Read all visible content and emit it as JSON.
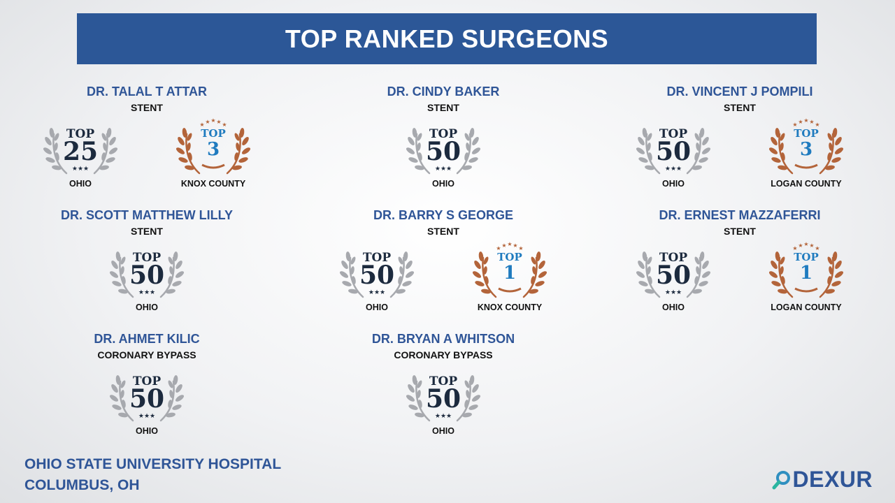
{
  "header": {
    "title": "TOP RANKED SURGEONS"
  },
  "surgeons": [
    {
      "name": "DR. TALAL T ATTAR",
      "procedure": "STENT",
      "badges": [
        {
          "top": "TOP",
          "rank": "25",
          "location": "OHIO",
          "style": "silver"
        },
        {
          "top": "TOP",
          "rank": "3",
          "location": "KNOX COUNTY",
          "style": "bronze"
        }
      ]
    },
    {
      "name": "DR. CINDY BAKER",
      "procedure": "STENT",
      "badges": [
        {
          "top": "TOP",
          "rank": "50",
          "location": "OHIO",
          "style": "silver"
        }
      ]
    },
    {
      "name": "DR. VINCENT J POMPILI",
      "procedure": "STENT",
      "badges": [
        {
          "top": "TOP",
          "rank": "50",
          "location": "OHIO",
          "style": "silver"
        },
        {
          "top": "TOP",
          "rank": "3",
          "location": "LOGAN COUNTY",
          "style": "bronze"
        }
      ]
    },
    {
      "name": "DR. SCOTT MATTHEW LILLY",
      "procedure": "STENT",
      "badges": [
        {
          "top": "TOP",
          "rank": "50",
          "location": "OHIO",
          "style": "silver"
        }
      ]
    },
    {
      "name": "DR. BARRY S GEORGE",
      "procedure": "STENT",
      "badges": [
        {
          "top": "TOP",
          "rank": "50",
          "location": "OHIO",
          "style": "silver"
        },
        {
          "top": "TOP",
          "rank": "1",
          "location": "KNOX COUNTY",
          "style": "bronze"
        }
      ]
    },
    {
      "name": "DR. ERNEST MAZZAFERRI",
      "procedure": "STENT",
      "badges": [
        {
          "top": "TOP",
          "rank": "50",
          "location": "OHIO",
          "style": "silver"
        },
        {
          "top": "TOP",
          "rank": "1",
          "location": "LOGAN COUNTY",
          "style": "bronze"
        }
      ]
    },
    {
      "name": "DR. AHMET KILIC",
      "procedure": "CORONARY BYPASS",
      "badges": [
        {
          "top": "TOP",
          "rank": "50",
          "location": "OHIO",
          "style": "silver"
        }
      ]
    },
    {
      "name": "DR. BRYAN A WHITSON",
      "procedure": "CORONARY BYPASS",
      "badges": [
        {
          "top": "TOP",
          "rank": "50",
          "location": "OHIO",
          "style": "silver"
        }
      ]
    }
  ],
  "footer": {
    "hospital": "OHIO STATE UNIVERSITY HOSPITAL",
    "city": "COLUMBUS, OH"
  },
  "logo": {
    "text": "DEXUR",
    "icon": "magnifier-icon"
  },
  "colors": {
    "banner": "#2c5797",
    "name": "#2f5597",
    "silver": "#a7a9ae",
    "silver_text": "#1c2a3e",
    "bronze": "#b3643a",
    "bronze_text": "#1f7bbf"
  }
}
